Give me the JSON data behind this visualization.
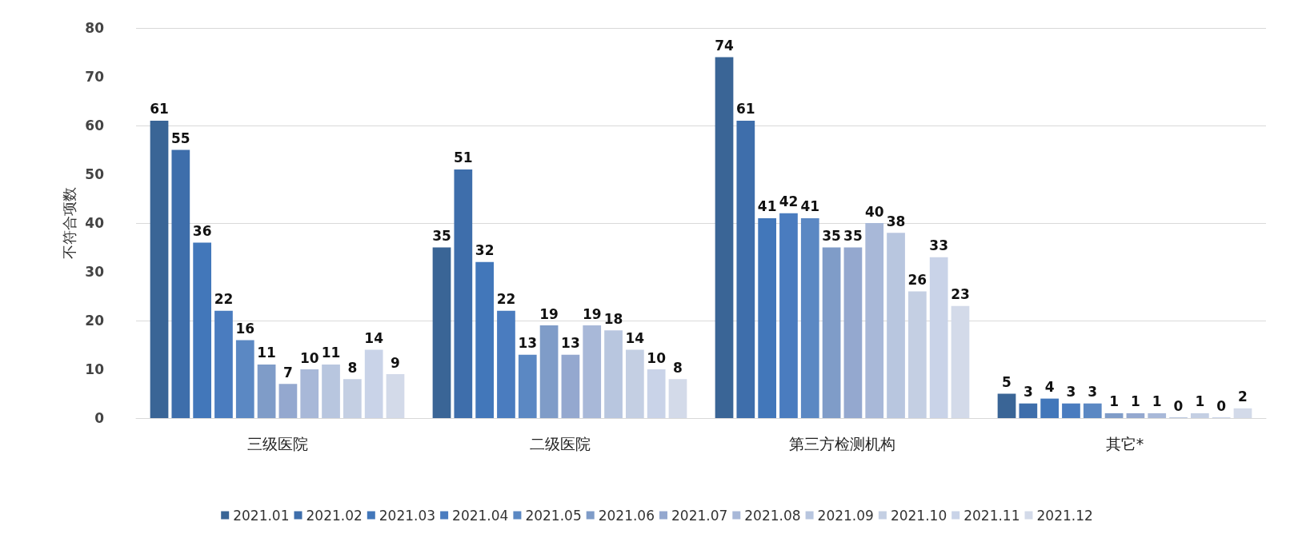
{
  "chart_data": {
    "type": "bar",
    "ylabel": "不符合项数",
    "categories": [
      "三级医院",
      "二级医院",
      "第三方检测机构",
      "其它*"
    ],
    "series": [
      {
        "name": "2021.01",
        "color": "#3a6596",
        "values": [
          61,
          35,
          74,
          5
        ]
      },
      {
        "name": "2021.02",
        "color": "#3e6eab",
        "values": [
          55,
          51,
          61,
          3
        ]
      },
      {
        "name": "2021.03",
        "color": "#4277ba",
        "values": [
          36,
          32,
          41,
          4
        ]
      },
      {
        "name": "2021.04",
        "color": "#4a7cbf",
        "values": [
          22,
          22,
          42,
          3
        ]
      },
      {
        "name": "2021.05",
        "color": "#5b88c3",
        "values": [
          16,
          13,
          41,
          3
        ]
      },
      {
        "name": "2021.06",
        "color": "#7f9cc8",
        "values": [
          11,
          19,
          35,
          1
        ]
      },
      {
        "name": "2021.07",
        "color": "#94a8cf",
        "values": [
          7,
          13,
          35,
          1
        ]
      },
      {
        "name": "2021.08",
        "color": "#a8b8d8",
        "values": [
          10,
          19,
          40,
          1
        ]
      },
      {
        "name": "2021.09",
        "color": "#b8c6df",
        "values": [
          11,
          18,
          38,
          0
        ]
      },
      {
        "name": "2021.10",
        "color": "#c4cfe3",
        "values": [
          8,
          14,
          26,
          1
        ]
      },
      {
        "name": "2021.11",
        "color": "#c9d3e8",
        "values": [
          14,
          10,
          33,
          0
        ]
      },
      {
        "name": "2021.12",
        "color": "#d3dae9",
        "values": [
          9,
          8,
          23,
          2
        ]
      }
    ],
    "ylim": [
      0,
      80
    ],
    "yticks": [
      0,
      10,
      20,
      30,
      40,
      50,
      60,
      70,
      80
    ],
    "grid": "y",
    "legend": "bottom",
    "data_labels": true
  }
}
